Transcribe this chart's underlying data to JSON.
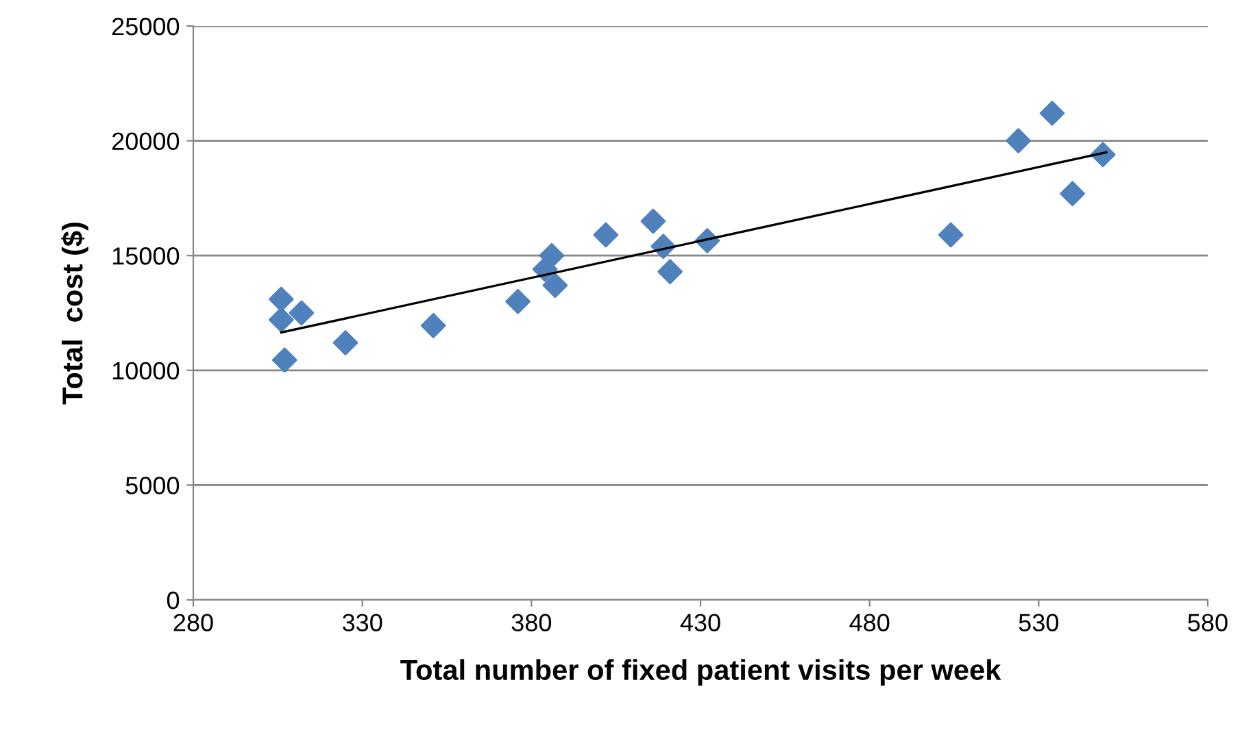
{
  "chart_data": {
    "type": "scatter",
    "xlabel": "Total number of fixed patient visits per week",
    "ylabel": "Total  cost ($)",
    "series": [
      {
        "color": "#4f81bd",
        "marker": "diamond",
        "x": [
          306,
          306,
          312,
          307,
          325,
          351,
          376,
          384,
          386,
          387,
          402,
          416,
          419,
          421,
          432,
          504,
          524,
          534,
          540,
          549
        ],
        "values": [
          13100,
          12200,
          12500,
          10450,
          11200,
          11950,
          13000,
          14400,
          15000,
          13700,
          15900,
          16500,
          15400,
          14300,
          15650,
          15900,
          20000,
          21200,
          17700,
          19400
        ]
      },
      {
        "type": "line",
        "color": "#000000",
        "marker": "none",
        "x": [
          306,
          550
        ],
        "values": [
          11650,
          19500
        ]
      }
    ],
    "xlim": [
      280,
      580
    ],
    "xticks": [
      280,
      330,
      380,
      430,
      480,
      530,
      580
    ],
    "ylim": [
      0,
      25000
    ],
    "yticks": [
      0,
      5000,
      10000,
      15000,
      20000,
      25000
    ],
    "grid": "y",
    "legend": false
  }
}
